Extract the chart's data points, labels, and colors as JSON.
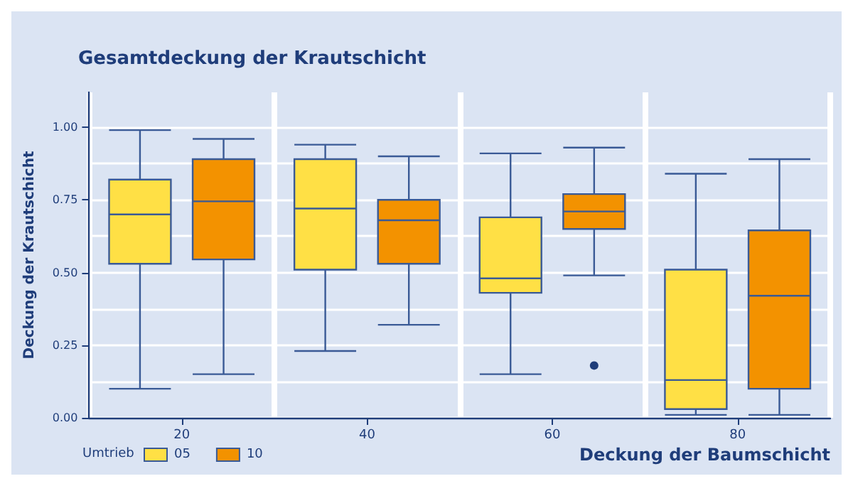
{
  "chart_data": {
    "type": "box",
    "title": "Gesamtdeckung der Krautschicht",
    "xlabel": "Deckung der Baumschicht",
    "ylabel": "Deckung der Krautschicht",
    "legend_title": "Umtrieb",
    "categories": [
      "20",
      "40",
      "60",
      "80"
    ],
    "series": [
      {
        "name": "05",
        "color": "#ffe045",
        "boxes": [
          {
            "low": 0.1,
            "q1": 0.53,
            "median": 0.7,
            "q3": 0.82,
            "high": 0.99
          },
          {
            "low": 0.23,
            "q1": 0.51,
            "median": 0.72,
            "q3": 0.89,
            "high": 0.94
          },
          {
            "low": 0.15,
            "q1": 0.43,
            "median": 0.48,
            "q3": 0.69,
            "high": 0.91
          },
          {
            "low": 0.01,
            "q1": 0.03,
            "median": 0.13,
            "q3": 0.51,
            "high": 0.84
          }
        ]
      },
      {
        "name": "10",
        "color": "#f39200",
        "boxes": [
          {
            "low": 0.15,
            "q1": 0.545,
            "median": 0.745,
            "q3": 0.89,
            "high": 0.96
          },
          {
            "low": 0.32,
            "q1": 0.53,
            "median": 0.68,
            "q3": 0.75,
            "high": 0.9
          },
          {
            "low": 0.49,
            "q1": 0.65,
            "median": 0.71,
            "q3": 0.77,
            "high": 0.93,
            "outliers": [
              0.18
            ]
          },
          {
            "low": 0.01,
            "q1": 0.1,
            "median": 0.42,
            "q3": 0.645,
            "high": 0.89
          }
        ]
      }
    ],
    "ylim": [
      0,
      1.12
    ],
    "yticks": [
      {
        "value": 0,
        "label": "0.00"
      },
      {
        "value": 0.25,
        "label": "0.25"
      },
      {
        "value": 0.5,
        "label": "0.50"
      },
      {
        "value": 0.75,
        "label": "0.75"
      },
      {
        "value": 1,
        "label": "1.00"
      }
    ],
    "grid": true,
    "legend": "bottom left"
  }
}
